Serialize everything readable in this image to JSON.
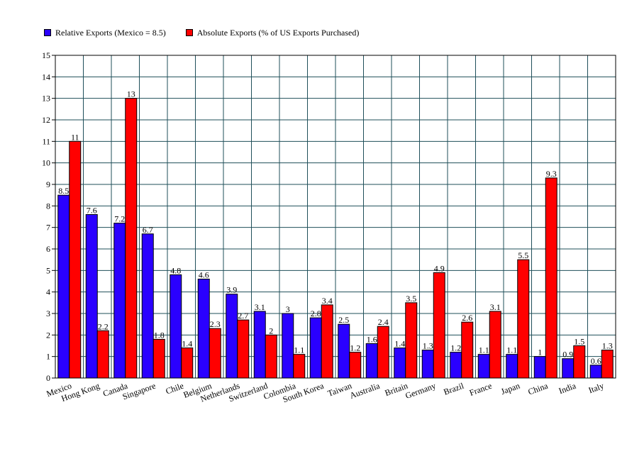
{
  "chart_data": {
    "type": "bar",
    "title": "",
    "xlabel": "",
    "ylabel": "",
    "ylim": [
      0,
      15
    ],
    "yticks": [
      "0",
      "1",
      "2",
      "3",
      "4",
      "5",
      "6",
      "7",
      "8",
      "9",
      "10",
      "11",
      "12",
      "13",
      "14",
      "15"
    ],
    "grid": true,
    "legend_position": "top-left",
    "categories": [
      "Mexico",
      "Hong Kong",
      "Canada",
      "Singapore",
      "Chile",
      "Belgium",
      "Netherlands",
      "Switzerland",
      "Colombia",
      "South Korea",
      "Taiwan",
      "Australia",
      "Britain",
      "Germany",
      "Brazil",
      "France",
      "Japan",
      "China",
      "India",
      "Italy"
    ],
    "series": [
      {
        "name": "Relative Exports (Mexico = 8.5)",
        "color": "#2a00ff",
        "values": [
          8.5,
          7.6,
          7.2,
          6.7,
          4.8,
          4.6,
          3.9,
          3.1,
          3,
          2.8,
          2.5,
          1.6,
          1.4,
          1.3,
          1.2,
          1.1,
          1.1,
          1,
          0.9,
          0.6
        ]
      },
      {
        "name": "Absolute Exports (% of US Exports Purchased)",
        "color": "#ff0000",
        "values": [
          11,
          2.2,
          13,
          1.8,
          1.4,
          2.3,
          2.7,
          2,
          1.1,
          3.4,
          1.2,
          2.4,
          3.5,
          4.9,
          2.6,
          3.1,
          5.5,
          9.3,
          1.5,
          1.3
        ]
      }
    ],
    "grid_color": "#1f4f5a"
  }
}
